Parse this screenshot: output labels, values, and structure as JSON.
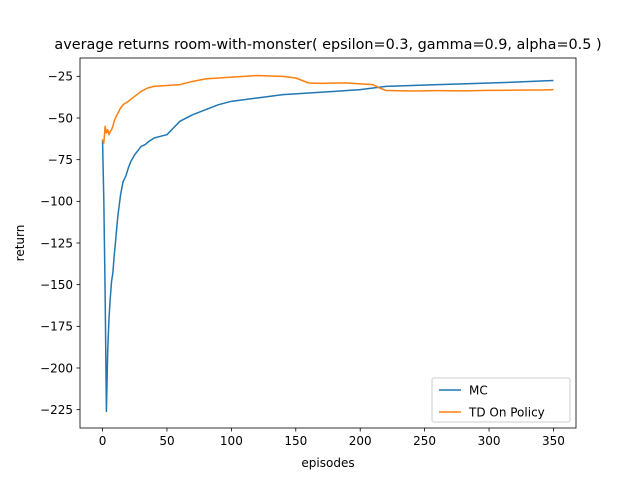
{
  "chart_data": {
    "type": "line",
    "title": "average returns room-with-monster( epsilon=0.3, gamma=0.9, alpha=0.5 )",
    "xlabel": "episodes",
    "ylabel": "return",
    "xlim": [
      -17.5,
      367.5
    ],
    "ylim": [
      -236,
      -14
    ],
    "xticks": [
      0,
      50,
      100,
      150,
      200,
      250,
      300,
      350
    ],
    "yticks": [
      -225,
      -200,
      -175,
      -150,
      -125,
      -100,
      -75,
      -50,
      -25
    ],
    "grid": false,
    "legend_position": "lower right",
    "series": [
      {
        "name": "MC",
        "color": "#1f77b4",
        "x": [
          0,
          1,
          2,
          3,
          4,
          5,
          6,
          7,
          8,
          9,
          10,
          11,
          12,
          14,
          16,
          18,
          20,
          22,
          25,
          28,
          30,
          33,
          36,
          40,
          45,
          50,
          55,
          60,
          70,
          80,
          90,
          100,
          120,
          140,
          160,
          180,
          200,
          210,
          220,
          240,
          260,
          280,
          300,
          320,
          340,
          350
        ],
        "y": [
          -63,
          -100,
          -155,
          -226,
          -190,
          -170,
          -158,
          -148,
          -143,
          -133,
          -125,
          -116,
          -108,
          -96,
          -88,
          -85,
          -80,
          -76,
          -72,
          -69,
          -67,
          -66,
          -64,
          -62,
          -61,
          -60,
          -56,
          -52,
          -48,
          -45,
          -42,
          -40,
          -38,
          -36,
          -35,
          -34,
          -33,
          -32,
          -31,
          -30.5,
          -30,
          -29.5,
          -29,
          -28.5,
          -27.8,
          -27.5
        ]
      },
      {
        "name": "TD On Policy",
        "color": "#ff7f0e",
        "x": [
          0,
          1,
          2,
          3,
          4,
          5,
          6,
          7,
          8,
          9,
          10,
          12,
          14,
          16,
          18,
          20,
          25,
          30,
          35,
          40,
          50,
          60,
          70,
          80,
          90,
          100,
          110,
          120,
          130,
          140,
          150,
          160,
          170,
          180,
          190,
          200,
          210,
          215,
          220,
          240,
          260,
          280,
          300,
          320,
          340,
          350
        ],
        "y": [
          -63,
          -65,
          -55,
          -59,
          -57,
          -60,
          -58,
          -57,
          -55,
          -52,
          -50,
          -47,
          -44,
          -42,
          -41,
          -40,
          -37,
          -34,
          -32,
          -31,
          -30.5,
          -30,
          -28,
          -26.5,
          -26,
          -25.5,
          -25,
          -24.5,
          -24.8,
          -25,
          -26,
          -29,
          -29.2,
          -29,
          -29,
          -29.5,
          -30,
          -32,
          -33.5,
          -33.8,
          -33.6,
          -33.7,
          -33.4,
          -33.3,
          -33.2,
          -33
        ]
      }
    ]
  }
}
